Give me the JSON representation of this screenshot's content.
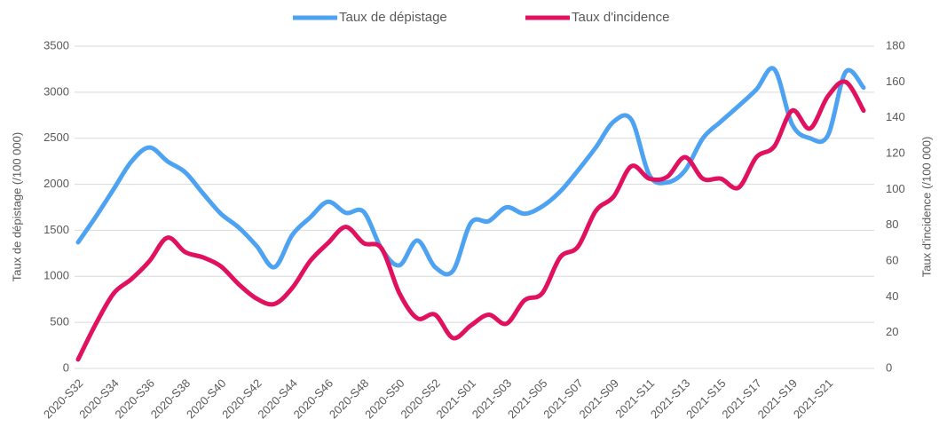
{
  "chart_data": {
    "type": "line",
    "categories": [
      "2020-S32",
      null,
      "2020-S34",
      null,
      "2020-S36",
      null,
      "2020-S38",
      null,
      "2020-S40",
      null,
      "2020-S42",
      null,
      "2020-S44",
      null,
      "2020-S46",
      null,
      "2020-S48",
      null,
      "2020-S50",
      null,
      "2020-S52",
      null,
      "2021-S01",
      null,
      "2021-S03",
      null,
      "2021-S05",
      null,
      "2021-S07",
      null,
      "2021-S09",
      null,
      "2021-S11",
      null,
      "2021-S13",
      null,
      "2021-S15",
      null,
      "2021-S17",
      null,
      "2021-S19",
      null,
      "2021-S21",
      null,
      null
    ],
    "ylabel": "Taux de dépistage (/100 000)",
    "y2label": "Taux d'incidence (/100 000)",
    "ylim": [
      0,
      3500
    ],
    "yticks": [
      0,
      500,
      1000,
      1500,
      2000,
      2500,
      3000,
      3500
    ],
    "y2lim": [
      0,
      180
    ],
    "y2ticks": [
      0,
      20,
      40,
      60,
      80,
      100,
      120,
      140,
      160,
      180
    ],
    "grid": true,
    "legend": "top",
    "smooth": true,
    "series": [
      {
        "name": "Taux de dépistage",
        "color": "#4ea2f2",
        "axis": "y",
        "values": [
          1370,
          1650,
          1950,
          2250,
          2400,
          2250,
          2130,
          1900,
          1680,
          1530,
          1330,
          1100,
          1450,
          1640,
          1810,
          1690,
          1700,
          1300,
          1120,
          1390,
          1100,
          1060,
          1580,
          1600,
          1750,
          1680,
          1760,
          1920,
          2150,
          2400,
          2680,
          2700,
          2100,
          2020,
          2150,
          2500,
          2680,
          2850,
          3030,
          3250,
          2650,
          2500,
          2530,
          3220,
          3050
        ]
      },
      {
        "name": "Taux d'incidence",
        "color": "#e0115f",
        "axis": "y2",
        "values": [
          5,
          25,
          42,
          50,
          60,
          73,
          65,
          62,
          57,
          47,
          39,
          36,
          45,
          60,
          70,
          79,
          70,
          67,
          42,
          28,
          30,
          17,
          24,
          30,
          25,
          38,
          42,
          62,
          68,
          88,
          96,
          113,
          106,
          107,
          118,
          106,
          106,
          101,
          118,
          124,
          144,
          134,
          152,
          160,
          144
        ]
      }
    ]
  }
}
